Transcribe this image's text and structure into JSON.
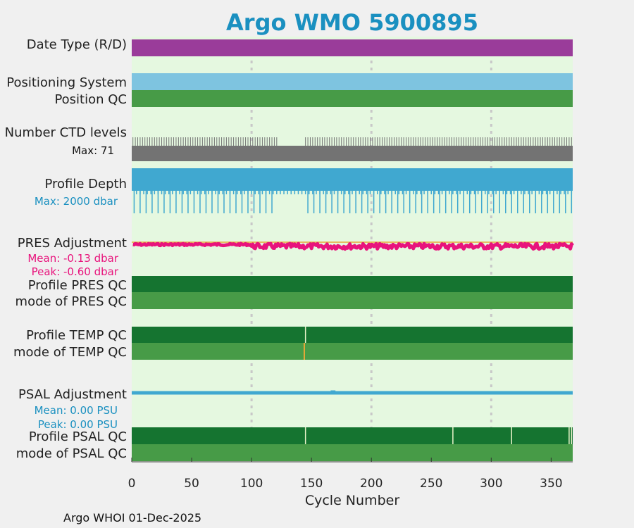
{
  "chart_data": {
    "type": "timeline",
    "title": "Argo WMO 5900895",
    "xlabel": "Cycle Number",
    "xlim": [
      0,
      368
    ],
    "xticks": [
      0,
      50,
      100,
      150,
      200,
      250,
      300,
      350
    ],
    "x_gridlines": [
      100,
      200,
      300
    ],
    "footer": "Argo WHOI 01-Dec-2025",
    "colors": {
      "title": "#1a90c0",
      "panel_bg": "#e5f8e0",
      "purple": "#9a3c9a",
      "lightblue": "#7ec4e0",
      "qc_good_dark": "#157430",
      "qc_good": "#479b47",
      "gray": "#737373",
      "blue": "#40a8d0",
      "magenta": "#e8137c",
      "orange": "#e8a838",
      "grid": "#c8c8c8"
    },
    "rows": {
      "date_type": {
        "label": "Date Type (R/D)"
      },
      "positioning": {
        "label": "Positioning System"
      },
      "position_qc": {
        "label": "Position QC"
      },
      "ctd_levels": {
        "label": "Number CTD levels",
        "max_text": "Max: 71",
        "max": 71
      },
      "profile_depth": {
        "label": "Profile Depth",
        "max_text": "Max: 2000 dbar",
        "max": 2000
      },
      "pres_adj": {
        "label": "PRES Adjustment",
        "mean_text": "Mean: -0.13 dbar",
        "peak_text": "Peak: -0.60 dbar",
        "mean": -0.13,
        "peak": -0.6
      },
      "profile_pres_qc": {
        "label": "Profile PRES QC"
      },
      "mode_pres_qc": {
        "label": "mode of PRES QC"
      },
      "profile_temp_qc": {
        "label": "Profile TEMP QC",
        "markers": [
          145
        ]
      },
      "mode_temp_qc": {
        "label": "mode of TEMP QC",
        "markers": [
          144
        ]
      },
      "psal_adj": {
        "label": "PSAL Adjustment",
        "mean_text": "Mean: 0.00 PSU",
        "peak_text": "Peak: 0.00 PSU",
        "mean": 0.0,
        "peak": 0.0
      },
      "profile_psal_qc": {
        "label": "Profile PSAL QC",
        "markers": [
          145,
          268,
          317,
          365,
          367
        ]
      },
      "mode_psal_qc": {
        "label": "mode of PSAL QC"
      }
    }
  }
}
